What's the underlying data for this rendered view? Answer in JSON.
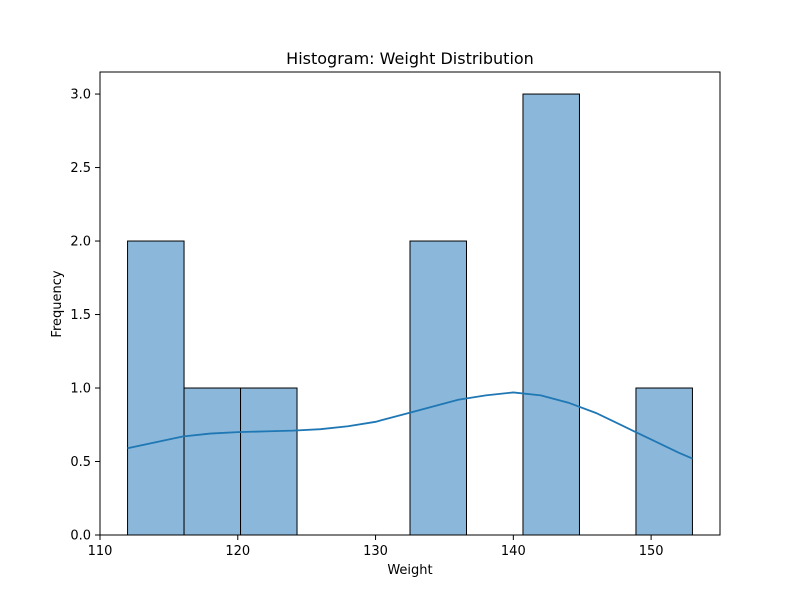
{
  "chart_data": {
    "type": "bar",
    "title": "Histogram: Weight Distribution",
    "xlabel": "Weight",
    "ylabel": "Frequency",
    "xlim": [
      110,
      155
    ],
    "ylim": [
      0,
      3.15
    ],
    "x_ticks": [
      110,
      120,
      130,
      140,
      150
    ],
    "y_ticks": [
      0.0,
      0.5,
      1.0,
      1.5,
      2.0,
      2.5,
      3.0
    ],
    "grid": false,
    "bar_color": "#8bb8da",
    "bar_edge_color": "#000000",
    "kde_color": "#1f77b4",
    "bins": [
      {
        "start": 112.0,
        "end": 116.1,
        "count": 2
      },
      {
        "start": 116.1,
        "end": 120.2,
        "count": 1
      },
      {
        "start": 120.2,
        "end": 124.3,
        "count": 1
      },
      {
        "start": 124.3,
        "end": 128.4,
        "count": 0
      },
      {
        "start": 128.4,
        "end": 132.5,
        "count": 0
      },
      {
        "start": 132.5,
        "end": 136.6,
        "count": 2
      },
      {
        "start": 136.6,
        "end": 140.7,
        "count": 0
      },
      {
        "start": 140.7,
        "end": 144.8,
        "count": 3
      },
      {
        "start": 144.8,
        "end": 148.9,
        "count": 0
      },
      {
        "start": 148.9,
        "end": 153.0,
        "count": 1
      }
    ],
    "kde": {
      "x": [
        112,
        114,
        116,
        118,
        120,
        122,
        124,
        126,
        128,
        130,
        132,
        134,
        136,
        138,
        140,
        142,
        144,
        146,
        148,
        150,
        152,
        153
      ],
      "y": [
        0.59,
        0.63,
        0.67,
        0.69,
        0.7,
        0.705,
        0.71,
        0.72,
        0.74,
        0.77,
        0.82,
        0.87,
        0.92,
        0.95,
        0.97,
        0.95,
        0.9,
        0.83,
        0.74,
        0.65,
        0.56,
        0.52
      ]
    }
  }
}
